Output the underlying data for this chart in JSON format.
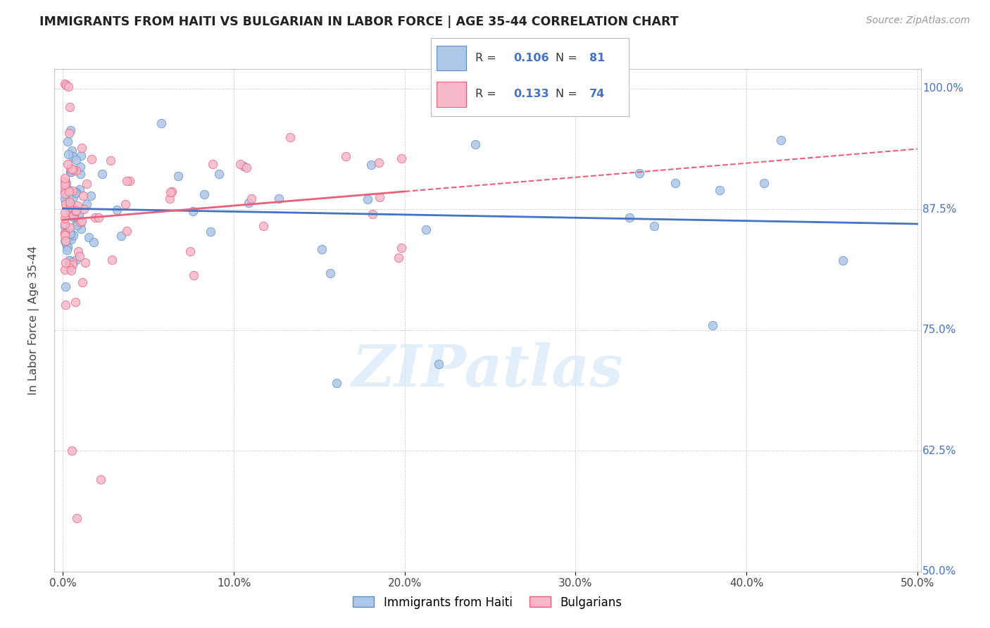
{
  "title": "IMMIGRANTS FROM HAITI VS BULGARIAN IN LABOR FORCE | AGE 35-44 CORRELATION CHART",
  "source": "Source: ZipAtlas.com",
  "ylabel": "In Labor Force | Age 35-44",
  "x_min": 0.0,
  "x_max": 0.5,
  "y_min": 0.5,
  "y_max": 1.02,
  "haiti_R": 0.106,
  "haiti_N": 81,
  "bulgarian_R": 0.133,
  "bulgarian_N": 74,
  "haiti_color": "#aec6e8",
  "bulgarian_color": "#f5b8c8",
  "haiti_edge_color": "#5b8ec4",
  "bulgarian_edge_color": "#e8607a",
  "haiti_line_color": "#4472c4",
  "bulgarian_line_color": "#e8607a",
  "watermark": "ZIPatlas",
  "legend_haiti_label": "Immigrants from Haiti",
  "legend_bulgarian_label": "Bulgarians"
}
